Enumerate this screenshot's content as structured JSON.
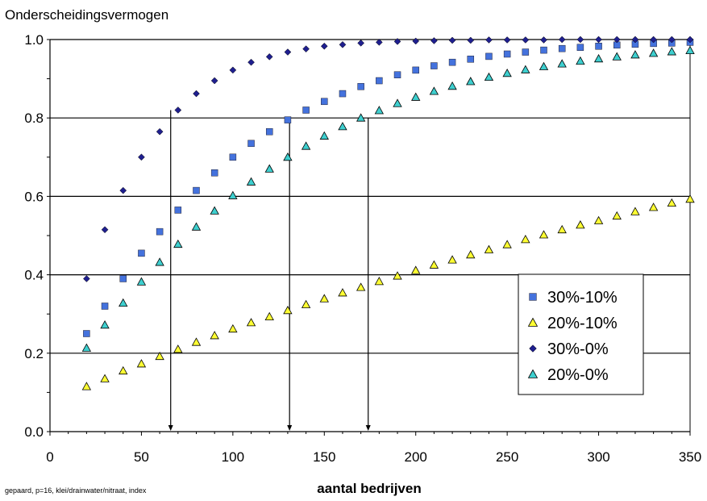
{
  "chart_data": {
    "type": "scatter",
    "title": "Onderscheidingsvermogen",
    "xlabel": "aantal bedrijven",
    "note": "gepaard, p=16, klei/drainwater/nitraat, index",
    "xlim": [
      0,
      350
    ],
    "ylim": [
      0.0,
      1.0
    ],
    "x_ticks": [
      "0",
      "50",
      "100",
      "150",
      "200",
      "250",
      "300",
      "350"
    ],
    "y_ticks": [
      "0.0",
      "0.2",
      "0.4",
      "0.6",
      "0.8",
      "1.0"
    ],
    "grid": "horizontal",
    "legend_position": "bottom-right",
    "x": [
      20,
      30,
      40,
      50,
      60,
      70,
      80,
      90,
      100,
      110,
      120,
      130,
      140,
      150,
      160,
      170,
      180,
      190,
      200,
      210,
      220,
      230,
      240,
      250,
      260,
      270,
      280,
      290,
      300,
      310,
      320,
      330,
      340,
      350
    ],
    "series": [
      {
        "name": "30%-10%",
        "marker": "square",
        "color": "#4472DD",
        "values": [
          0.25,
          0.32,
          0.39,
          0.455,
          0.51,
          0.565,
          0.615,
          0.66,
          0.7,
          0.735,
          0.765,
          0.795,
          0.82,
          0.842,
          0.862,
          0.88,
          0.895,
          0.91,
          0.922,
          0.933,
          0.942,
          0.95,
          0.957,
          0.963,
          0.968,
          0.973,
          0.977,
          0.98,
          0.983,
          0.986,
          0.988,
          0.99,
          0.991,
          0.993
        ]
      },
      {
        "name": "20%-10%",
        "marker": "triangle",
        "color": "#FFFF33",
        "values": [
          0.115,
          0.135,
          0.155,
          0.173,
          0.192,
          0.21,
          0.228,
          0.245,
          0.262,
          0.278,
          0.293,
          0.309,
          0.324,
          0.339,
          0.354,
          0.368,
          0.383,
          0.397,
          0.411,
          0.425,
          0.438,
          0.451,
          0.464,
          0.477,
          0.49,
          0.502,
          0.515,
          0.527,
          0.538,
          0.55,
          0.561,
          0.572,
          0.583,
          0.593
        ]
      },
      {
        "name": "30%-0%",
        "marker": "diamond",
        "color": "#1F1F8F",
        "values": [
          0.39,
          0.515,
          0.615,
          0.7,
          0.765,
          0.82,
          0.862,
          0.895,
          0.922,
          0.942,
          0.956,
          0.968,
          0.976,
          0.983,
          0.987,
          0.991,
          0.993,
          0.995,
          0.996,
          0.997,
          0.998,
          0.998,
          0.999,
          0.999,
          0.999,
          0.999,
          1.0,
          1.0,
          1.0,
          1.0,
          1.0,
          1.0,
          1.0,
          1.0
        ]
      },
      {
        "name": "20%-0%",
        "marker": "triangle",
        "color": "#3ECFCF",
        "values": [
          0.213,
          0.272,
          0.328,
          0.382,
          0.432,
          0.478,
          0.522,
          0.563,
          0.602,
          0.637,
          0.67,
          0.7,
          0.728,
          0.754,
          0.778,
          0.8,
          0.819,
          0.837,
          0.853,
          0.868,
          0.881,
          0.893,
          0.904,
          0.914,
          0.923,
          0.931,
          0.938,
          0.945,
          0.951,
          0.956,
          0.961,
          0.965,
          0.969,
          0.972
        ]
      }
    ],
    "annotations": [
      {
        "x": 66,
        "y_from": 0.82,
        "y_to": 0.0
      },
      {
        "x": 131,
        "y_from": 0.8,
        "y_to": 0.0
      },
      {
        "x": 174,
        "y_from": 0.8,
        "y_to": 0.0
      }
    ]
  }
}
